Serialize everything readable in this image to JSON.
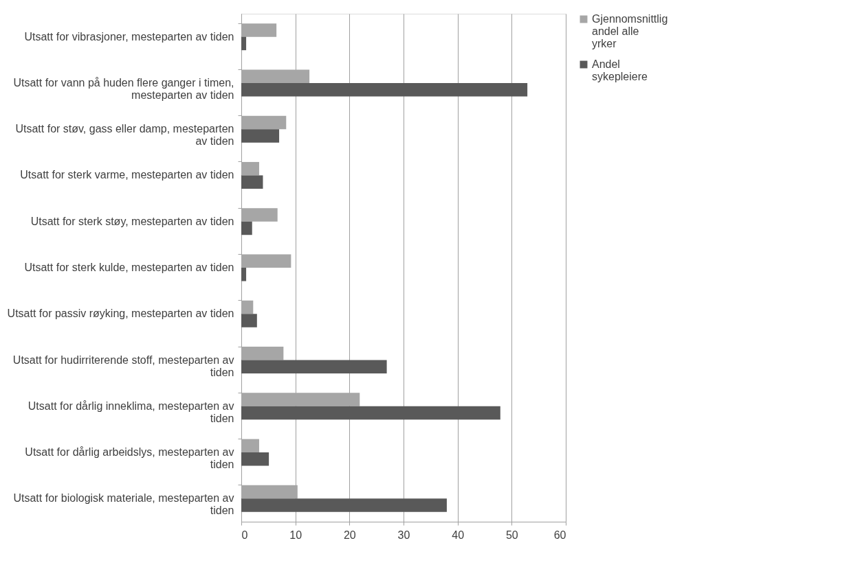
{
  "chart_data": {
    "type": "bar",
    "orientation": "horizontal",
    "categories": [
      "Utsatt for vibrasjoner, mesteparten av tiden",
      "Utsatt for vann på huden flere ganger i timen, mesteparten av tiden",
      "Utsatt for støv, gass eller damp, mesteparten av tiden",
      "Utsatt for sterk varme, mesteparten av tiden",
      "Utsatt for sterk støy, mesteparten av tiden",
      "Utsatt for sterk kulde, mesteparten av tiden",
      "Utsatt for passiv røyking, mesteparten av tiden",
      "Utsatt for hudirriterende stoff, mesteparten av tiden",
      "Utsatt for dårlig inneklima, mesteparten av tiden",
      "Utsatt for dårlig arbeidslys, mesteparten av tiden",
      "Utsatt for biologisk materiale, mesteparten av tiden"
    ],
    "series": [
      {
        "name": "Gjennomsnittlig andel alle yrker",
        "color": "#a6a6a6",
        "values": [
          6.5,
          12.6,
          8.3,
          3.3,
          6.7,
          9.2,
          2.2,
          7.8,
          21.9,
          3.3,
          10.4
        ]
      },
      {
        "name": "Andel sykepleiere",
        "color": "#595959",
        "values": [
          0.9,
          52.9,
          7.0,
          4.0,
          2.0,
          0.9,
          2.9,
          26.9,
          47.9,
          5.1,
          38.0
        ]
      }
    ],
    "xlim": [
      0,
      60
    ],
    "xticks": [
      0,
      10,
      20,
      30,
      40,
      50,
      60
    ],
    "grid": "x",
    "legend": "right"
  }
}
